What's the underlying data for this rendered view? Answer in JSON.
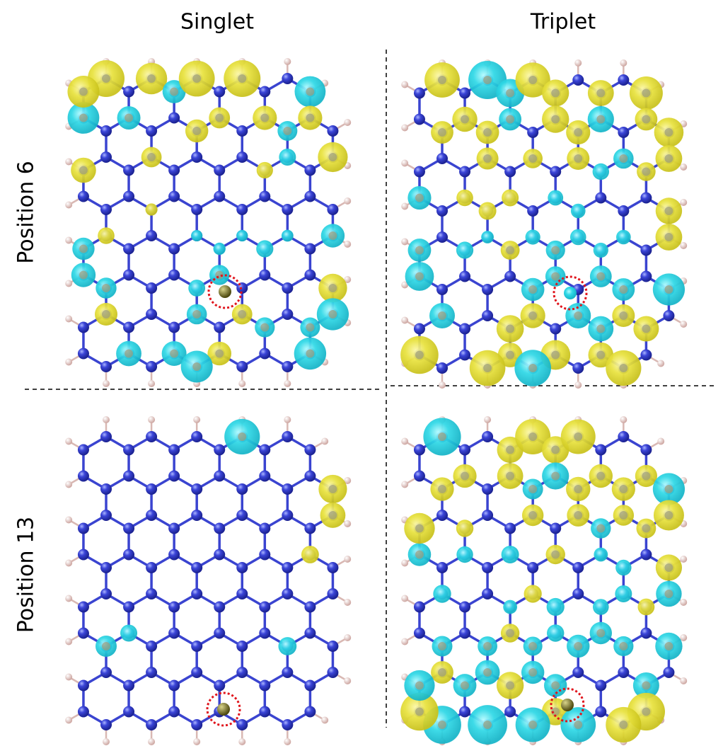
{
  "header": {
    "columns": [
      "Singlet",
      "Triplet"
    ],
    "rows": [
      "Position 6",
      "Position 13"
    ]
  }
}
